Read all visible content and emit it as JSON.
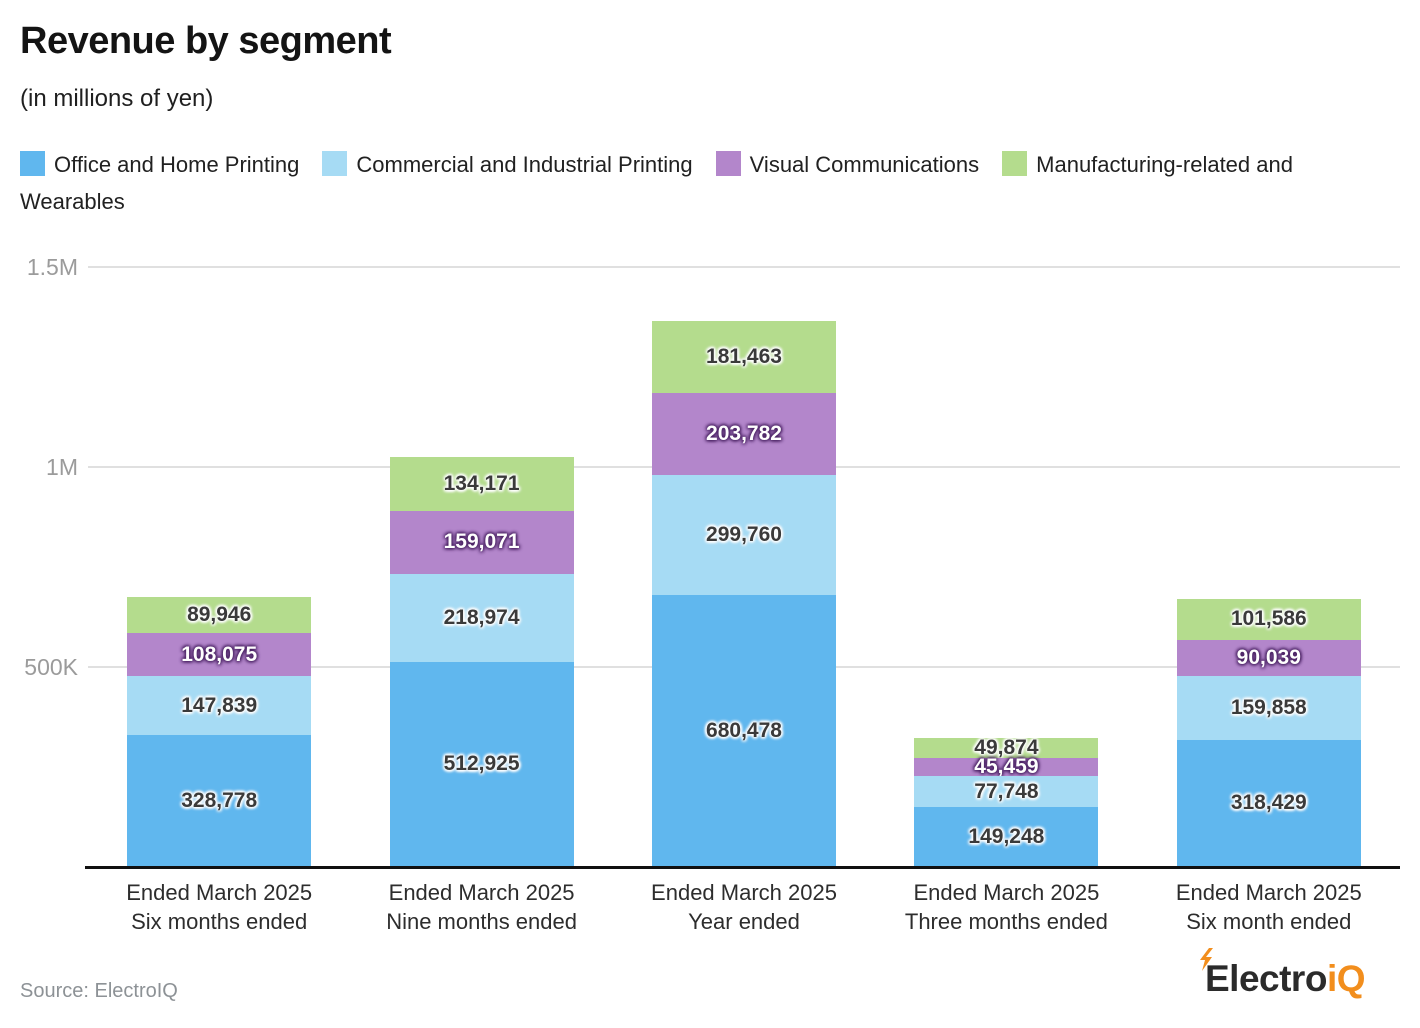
{
  "header": {
    "title": "Revenue by segment",
    "subtitle": "(in millions of yen)"
  },
  "footer": {
    "source": "Source: ElectroIQ",
    "logo": {
      "prefix": "Electro",
      "suffix": "iQ",
      "bolt_icon": "lightning-bolt-icon",
      "prefix_color": "#2b2b2b",
      "suffix_color": "#f28e1d"
    }
  },
  "chart_data": {
    "type": "bar",
    "stacked": true,
    "title": "Revenue by segment",
    "subtitle": "(in millions of yen)",
    "unit": "millions of yen",
    "legend_position": "top",
    "grid": true,
    "categories": [
      {
        "line1": "Ended March 2025",
        "line2": "Six months ended"
      },
      {
        "line1": "Ended March 2025",
        "line2": "Nine months ended"
      },
      {
        "line1": "Ended March 2025",
        "line2": "Year ended"
      },
      {
        "line1": "Ended March 2025",
        "line2": "Three months ended"
      },
      {
        "line1": "Ended March 2025",
        "line2": "Six month ended"
      }
    ],
    "series": [
      {
        "name": "Office and Home Printing",
        "color": "#60b7ee",
        "label_style": "dark",
        "values": [
          328778,
          512925,
          680478,
          149248,
          318429
        ]
      },
      {
        "name": "Commercial and Industrial Printing",
        "color": "#a6dbf4",
        "label_style": "dark",
        "values": [
          147839,
          218974,
          299760,
          77748,
          159858
        ]
      },
      {
        "name": "Visual Communications",
        "color": "#b386cb",
        "label_style": "light",
        "values": [
          108075,
          159071,
          203782,
          45459,
          90039
        ]
      },
      {
        "name": "Manufacturing-related and Wearables",
        "color": "#b4dc8d",
        "label_style": "dark",
        "values": [
          89946,
          134171,
          181463,
          49874,
          101586
        ]
      }
    ],
    "y_axis": {
      "ticks": [
        {
          "label": "500K",
          "value": 500000
        },
        {
          "label": "1M",
          "value": 1000000
        },
        {
          "label": "1.5M",
          "value": 1500000
        }
      ],
      "ylim": [
        0,
        1500000
      ]
    },
    "totals": [
      674638,
      1025141,
      1365483,
      322329,
      669912
    ]
  }
}
